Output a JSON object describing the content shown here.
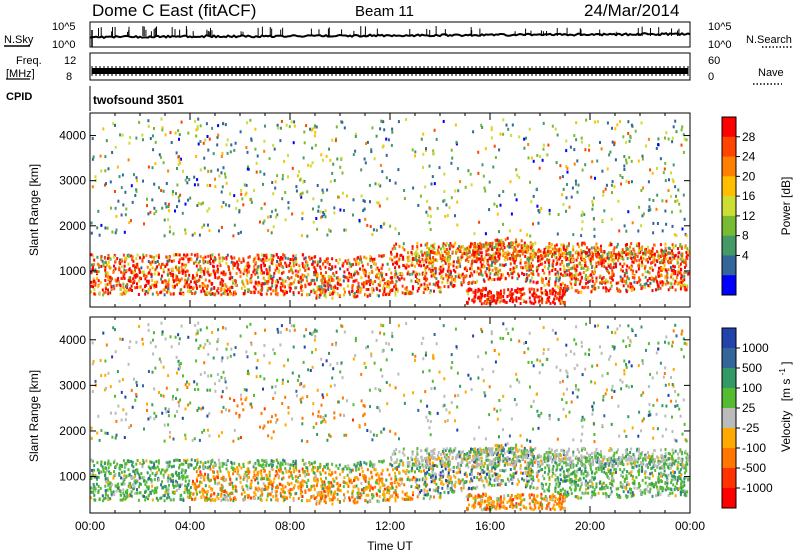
{
  "header": {
    "station": "Dome C East (fitACF)",
    "beam": "Beam 11",
    "date": "24/Mar/2014"
  },
  "left_labels": {
    "nsky": "N.Sky",
    "freq_line1": "Freq.",
    "freq_line2": "[MHz]",
    "cpid": "CPID"
  },
  "right_labels": {
    "nsearch": "N.Search",
    "nave": "Nave"
  },
  "cpid_value": "twofsound 3501",
  "chart_data": [
    {
      "type": "line",
      "name": "noise",
      "yticks_left": [
        "10^5",
        "10^0"
      ],
      "yticks_right": [
        "10^5",
        "10^0"
      ]
    },
    {
      "type": "line",
      "name": "frequency",
      "yticks_left": [
        "12",
        "8"
      ],
      "yticks_right": [
        "60",
        "0"
      ]
    },
    {
      "type": "heatmap",
      "name": "power",
      "title": "",
      "xlabel": "",
      "ylabel": "Slant Range [km]",
      "ylim": [
        200,
        4500
      ],
      "yticks": [
        1000,
        2000,
        3000,
        4000
      ],
      "colorbar": {
        "label": "Power [dB]",
        "ticks": [
          "28",
          "24",
          "20",
          "16",
          "12",
          "8",
          "4"
        ],
        "colors": [
          "#ff0000",
          "#ff4400",
          "#ff7f00",
          "#ffbf00",
          "#ccdd33",
          "#77bb33",
          "#449966",
          "#336699",
          "#0000ff"
        ]
      }
    },
    {
      "type": "heatmap",
      "name": "velocity",
      "xlabel": "Time UT",
      "ylabel": "Slant Range [km]",
      "ylim": [
        200,
        4500
      ],
      "yticks": [
        1000,
        2000,
        3000,
        4000
      ],
      "xticks": [
        "00:00",
        "04:00",
        "08:00",
        "12:00",
        "16:00",
        "20:00",
        "00:00"
      ],
      "colorbar": {
        "label_main": "Velocity",
        "label_unit": "[m s",
        "label_sup": "-1",
        "label_close": "]",
        "ticks": [
          "1000",
          "500",
          "100",
          "25",
          "-25",
          "-100",
          "-500",
          "-1000"
        ],
        "colors": [
          "#2244aa",
          "#336699",
          "#339966",
          "#55bb33",
          "#bbbbbb",
          "#ffaa00",
          "#ff7700",
          "#ff3300",
          "#ff0000"
        ]
      }
    }
  ]
}
